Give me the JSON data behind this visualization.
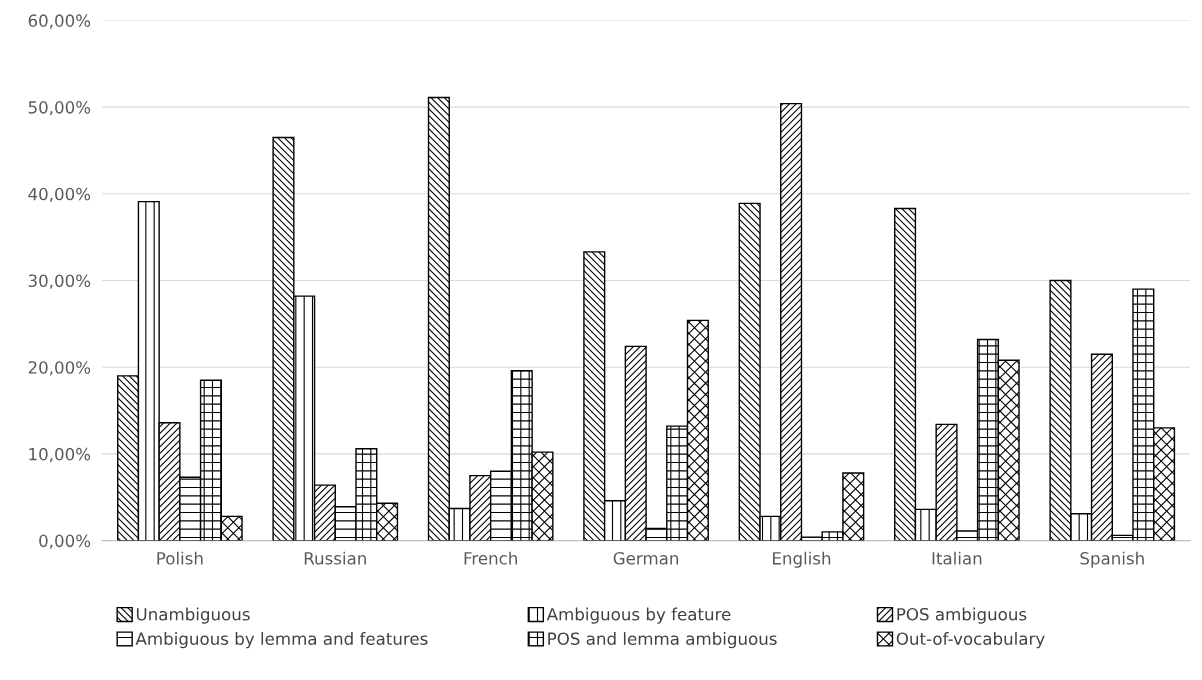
{
  "chart_data": {
    "type": "bar",
    "categories": [
      "Polish",
      "Russian",
      "French",
      "German",
      "English",
      "Italian",
      "Spanish"
    ],
    "series": [
      {
        "name": "Unambiguous",
        "color": "#000000",
        "values": [
          19.0,
          46.5,
          51.1,
          33.3,
          38.9,
          38.3,
          30.0
        ]
      },
      {
        "name": "Ambiguous by feature",
        "color": "#000000",
        "values": [
          39.1,
          28.2,
          3.7,
          4.6,
          2.8,
          3.6,
          3.1
        ]
      },
      {
        "name": "POS ambiguous",
        "color": "#000000",
        "values": [
          13.6,
          6.4,
          7.5,
          22.4,
          50.4,
          13.4,
          21.5
        ]
      },
      {
        "name": "Ambiguous by lemma and features",
        "color": "#000000",
        "values": [
          7.3,
          3.9,
          8.0,
          1.4,
          0.4,
          1.1,
          0.6
        ]
      },
      {
        "name": "POS and lemma ambiguous",
        "color": "#000000",
        "values": [
          18.5,
          10.6,
          19.6,
          13.2,
          1.0,
          23.2,
          29.0
        ]
      },
      {
        "name": "Out-of-vocabulary",
        "color": "#000000",
        "values": [
          2.8,
          4.3,
          10.2,
          25.4,
          7.8,
          20.8,
          13.0
        ]
      }
    ],
    "ylim": [
      0,
      60
    ],
    "yticks": [
      {
        "value": 0,
        "label": "0,00%"
      },
      {
        "value": 10,
        "label": "10,00%"
      },
      {
        "value": 20,
        "label": "20,00%"
      },
      {
        "value": 30,
        "label": "30,00%"
      },
      {
        "value": 40,
        "label": "40,00%"
      },
      {
        "value": 50,
        "label": "50,00%"
      },
      {
        "value": 60,
        "label": "60,00%"
      }
    ],
    "grid": "y",
    "legend": "bottom"
  }
}
